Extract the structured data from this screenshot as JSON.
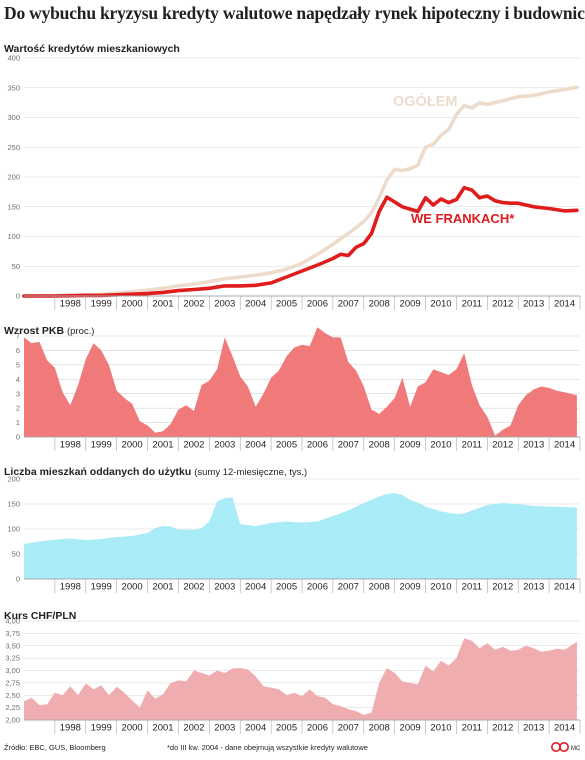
{
  "title": "Do wybuchu kryzysu kredyty walutowe napędzały rynek hipoteczny i budownictwo",
  "footer": {
    "source": "Źródło: EBC, GUS, Bloomberg",
    "note": "*do III kw. 2004 - dane obejmują wszystkie kredyty walutowe",
    "credit": "MC"
  },
  "colors": {
    "ogolem": "#eddccb",
    "frankach": "#e01c1c",
    "pkb": "#f07a79",
    "mieszkania": "#a9ecf7",
    "chf": "#f0adaf",
    "grid": "#d5d5d5",
    "axis": "#a7a9ac"
  },
  "years": [
    "1998",
    "1999",
    "2000",
    "2001",
    "2002",
    "2003",
    "2004",
    "2005",
    "2006",
    "2007",
    "2008",
    "2009",
    "2010",
    "2011",
    "2012",
    "2013",
    "2014"
  ],
  "chart_data": [
    {
      "type": "line",
      "title": "Wartość kredytów mieszkaniowych",
      "ylim": [
        0,
        400
      ],
      "yticks": [
        0,
        50,
        100,
        150,
        200,
        250,
        300,
        350,
        400
      ],
      "x_range": [
        1997,
        2015
      ],
      "series": [
        {
          "name": "OGÓŁEM",
          "points": [
            [
              1997.0,
              0
            ],
            [
              1998.0,
              1
            ],
            [
              1999.0,
              2
            ],
            [
              1999.5,
              3
            ],
            [
              2000.0,
              5
            ],
            [
              2000.5,
              7
            ],
            [
              2001.0,
              10
            ],
            [
              2001.5,
              13
            ],
            [
              2002.0,
              17
            ],
            [
              2002.5,
              20
            ],
            [
              2003.0,
              24
            ],
            [
              2003.5,
              29
            ],
            [
              2004.0,
              32
            ],
            [
              2004.5,
              35
            ],
            [
              2005.0,
              39
            ],
            [
              2005.5,
              45
            ],
            [
              2006.0,
              55
            ],
            [
              2006.5,
              70
            ],
            [
              2007.0,
              87
            ],
            [
              2007.5,
              105
            ],
            [
              2008.0,
              125
            ],
            [
              2008.25,
              140
            ],
            [
              2008.5,
              165
            ],
            [
              2008.75,
              195
            ],
            [
              2009.0,
              213
            ],
            [
              2009.25,
              211
            ],
            [
              2009.5,
              214
            ],
            [
              2009.75,
              220
            ],
            [
              2010.0,
              250
            ],
            [
              2010.25,
              255
            ],
            [
              2010.5,
              270
            ],
            [
              2010.75,
              280
            ],
            [
              2011.0,
              305
            ],
            [
              2011.25,
              320
            ],
            [
              2011.5,
              316
            ],
            [
              2011.75,
              325
            ],
            [
              2012.0,
              322
            ],
            [
              2012.5,
              328
            ],
            [
              2013.0,
              335
            ],
            [
              2013.5,
              337
            ],
            [
              2014.0,
              343
            ],
            [
              2014.5,
              347
            ],
            [
              2014.9,
              351
            ]
          ]
        },
        {
          "name": "WE FRANKACH*",
          "points": [
            [
              1997.0,
              0
            ],
            [
              1998.0,
              0
            ],
            [
              1999.0,
              1
            ],
            [
              1999.5,
              1
            ],
            [
              2000.0,
              2
            ],
            [
              2000.5,
              3
            ],
            [
              2001.0,
              4
            ],
            [
              2001.5,
              6
            ],
            [
              2002.0,
              9
            ],
            [
              2002.5,
              11
            ],
            [
              2003.0,
              13
            ],
            [
              2003.5,
              17
            ],
            [
              2004.0,
              17
            ],
            [
              2004.5,
              18
            ],
            [
              2005.0,
              22
            ],
            [
              2005.5,
              32
            ],
            [
              2006.0,
              42
            ],
            [
              2006.5,
              52
            ],
            [
              2007.0,
              63
            ],
            [
              2007.25,
              70
            ],
            [
              2007.5,
              68
            ],
            [
              2007.75,
              82
            ],
            [
              2008.0,
              88
            ],
            [
              2008.25,
              105
            ],
            [
              2008.5,
              142
            ],
            [
              2008.75,
              166
            ],
            [
              2009.0,
              158
            ],
            [
              2009.25,
              150
            ],
            [
              2009.5,
              146
            ],
            [
              2009.75,
              142
            ],
            [
              2010.0,
              165
            ],
            [
              2010.25,
              153
            ],
            [
              2010.5,
              163
            ],
            [
              2010.75,
              157
            ],
            [
              2011.0,
              162
            ],
            [
              2011.25,
              182
            ],
            [
              2011.5,
              178
            ],
            [
              2011.75,
              165
            ],
            [
              2012.0,
              168
            ],
            [
              2012.25,
              160
            ],
            [
              2012.5,
              157
            ],
            [
              2012.75,
              156
            ],
            [
              2013.0,
              156
            ],
            [
              2013.5,
              150
            ],
            [
              2014.0,
              147
            ],
            [
              2014.5,
              143
            ],
            [
              2014.9,
              144
            ]
          ]
        }
      ]
    },
    {
      "type": "area",
      "title": "Wzrost PKB",
      "unit": "(proc.)",
      "ylim": [
        0,
        7
      ],
      "yticks": [
        0,
        1,
        2,
        3,
        4,
        5,
        6,
        7
      ],
      "x_range": [
        1997,
        2015
      ],
      "points": [
        [
          1997.0,
          6.9
        ],
        [
          1997.25,
          6.5
        ],
        [
          1997.5,
          6.6
        ],
        [
          1997.75,
          5.3
        ],
        [
          1998.0,
          4.8
        ],
        [
          1998.25,
          3.1
        ],
        [
          1998.5,
          2.2
        ],
        [
          1998.75,
          3.6
        ],
        [
          1999.0,
          5.4
        ],
        [
          1999.25,
          6.5
        ],
        [
          1999.5,
          6.0
        ],
        [
          1999.75,
          5.0
        ],
        [
          2000.0,
          3.2
        ],
        [
          2000.25,
          2.7
        ],
        [
          2000.5,
          2.3
        ],
        [
          2000.75,
          1.1
        ],
        [
          2001.0,
          0.8
        ],
        [
          2001.25,
          0.3
        ],
        [
          2001.5,
          0.4
        ],
        [
          2001.75,
          0.9
        ],
        [
          2002.0,
          1.9
        ],
        [
          2002.25,
          2.2
        ],
        [
          2002.5,
          1.8
        ],
        [
          2002.75,
          3.6
        ],
        [
          2003.0,
          3.9
        ],
        [
          2003.25,
          4.7
        ],
        [
          2003.5,
          6.9
        ],
        [
          2003.75,
          5.6
        ],
        [
          2004.0,
          4.2
        ],
        [
          2004.25,
          3.5
        ],
        [
          2004.5,
          2.1
        ],
        [
          2004.75,
          3.0
        ],
        [
          2005.0,
          4.1
        ],
        [
          2005.25,
          4.6
        ],
        [
          2005.5,
          5.6
        ],
        [
          2005.75,
          6.2
        ],
        [
          2006.0,
          6.4
        ],
        [
          2006.25,
          6.3
        ],
        [
          2006.5,
          7.6
        ],
        [
          2006.75,
          7.2
        ],
        [
          2007.0,
          6.9
        ],
        [
          2007.25,
          6.9
        ],
        [
          2007.5,
          5.2
        ],
        [
          2007.75,
          4.6
        ],
        [
          2008.0,
          3.5
        ],
        [
          2008.25,
          1.9
        ],
        [
          2008.5,
          1.6
        ],
        [
          2008.75,
          2.1
        ],
        [
          2009.0,
          2.7
        ],
        [
          2009.25,
          4.1
        ],
        [
          2009.5,
          2.1
        ],
        [
          2009.75,
          3.5
        ],
        [
          2010.0,
          3.8
        ],
        [
          2010.25,
          4.7
        ],
        [
          2010.5,
          4.5
        ],
        [
          2010.75,
          4.3
        ],
        [
          2011.0,
          4.7
        ],
        [
          2011.25,
          5.8
        ],
        [
          2011.5,
          3.6
        ],
        [
          2011.75,
          2.2
        ],
        [
          2012.0,
          1.4
        ],
        [
          2012.25,
          0.1
        ],
        [
          2012.5,
          0.5
        ],
        [
          2012.75,
          0.8
        ],
        [
          2013.0,
          2.2
        ],
        [
          2013.25,
          2.9
        ],
        [
          2013.5,
          3.3
        ],
        [
          2013.75,
          3.5
        ],
        [
          2014.0,
          3.4
        ],
        [
          2014.25,
          3.2
        ],
        [
          2014.5,
          3.1
        ],
        [
          2014.9,
          2.9
        ]
      ]
    },
    {
      "type": "area",
      "title": "Liczba mieszkań oddanych do użytku",
      "unit": "(sumy 12-miesięczne, tys.)",
      "ylim": [
        0,
        200
      ],
      "yticks": [
        0,
        50,
        100,
        150,
        200
      ],
      "x_range": [
        1997,
        2015
      ],
      "points": [
        [
          1997.0,
          70
        ],
        [
          1997.5,
          75
        ],
        [
          1998.0,
          79
        ],
        [
          1998.5,
          81
        ],
        [
          1999.0,
          78
        ],
        [
          1999.5,
          80
        ],
        [
          2000.0,
          84
        ],
        [
          2000.5,
          86
        ],
        [
          2001.0,
          92
        ],
        [
          2001.25,
          102
        ],
        [
          2001.5,
          106
        ],
        [
          2001.75,
          105
        ],
        [
          2002.0,
          99
        ],
        [
          2002.5,
          98
        ],
        [
          2002.75,
          102
        ],
        [
          2003.0,
          115
        ],
        [
          2003.25,
          155
        ],
        [
          2003.5,
          162
        ],
        [
          2003.75,
          163
        ],
        [
          2004.0,
          110
        ],
        [
          2004.5,
          106
        ],
        [
          2005.0,
          112
        ],
        [
          2005.5,
          115
        ],
        [
          2006.0,
          113
        ],
        [
          2006.5,
          115
        ],
        [
          2007.0,
          126
        ],
        [
          2007.5,
          137
        ],
        [
          2008.0,
          152
        ],
        [
          2008.5,
          165
        ],
        [
          2008.75,
          170
        ],
        [
          2009.0,
          172
        ],
        [
          2009.25,
          168
        ],
        [
          2009.5,
          158
        ],
        [
          2009.75,
          153
        ],
        [
          2010.0,
          145
        ],
        [
          2010.5,
          135
        ],
        [
          2011.0,
          130
        ],
        [
          2011.25,
          131
        ],
        [
          2011.5,
          137
        ],
        [
          2012.0,
          148
        ],
        [
          2012.5,
          152
        ],
        [
          2013.0,
          150
        ],
        [
          2013.5,
          146
        ],
        [
          2014.0,
          145
        ],
        [
          2014.5,
          144
        ],
        [
          2014.9,
          143
        ]
      ]
    },
    {
      "type": "area",
      "title": "Kurs CHF/PLN",
      "ylim": [
        2.0,
        4.0
      ],
      "yticks": [
        2.0,
        2.25,
        2.5,
        2.75,
        3.0,
        3.25,
        3.5,
        3.75,
        4.0
      ],
      "ytick_labels": [
        "2,00",
        "2,25",
        "2,50",
        "2,75",
        "3,00",
        "3,25",
        "3,50",
        "3,75",
        "4,00"
      ],
      "x_range": [
        1997,
        2015
      ],
      "points": [
        [
          1997.0,
          2.38
        ],
        [
          1997.25,
          2.45
        ],
        [
          1997.5,
          2.3
        ],
        [
          1997.75,
          2.32
        ],
        [
          1998.0,
          2.55
        ],
        [
          1998.25,
          2.5
        ],
        [
          1998.5,
          2.68
        ],
        [
          1998.75,
          2.5
        ],
        [
          1999.0,
          2.74
        ],
        [
          1999.25,
          2.62
        ],
        [
          1999.5,
          2.7
        ],
        [
          1999.75,
          2.5
        ],
        [
          2000.0,
          2.67
        ],
        [
          2000.25,
          2.55
        ],
        [
          2000.5,
          2.4
        ],
        [
          2000.75,
          2.25
        ],
        [
          2001.0,
          2.6
        ],
        [
          2001.25,
          2.43
        ],
        [
          2001.5,
          2.52
        ],
        [
          2001.75,
          2.75
        ],
        [
          2002.0,
          2.8
        ],
        [
          2002.25,
          2.78
        ],
        [
          2002.5,
          3.0
        ],
        [
          2002.75,
          2.95
        ],
        [
          2003.0,
          2.9
        ],
        [
          2003.25,
          3.0
        ],
        [
          2003.5,
          2.95
        ],
        [
          2003.75,
          3.04
        ],
        [
          2004.0,
          3.05
        ],
        [
          2004.25,
          3.02
        ],
        [
          2004.5,
          2.88
        ],
        [
          2004.75,
          2.68
        ],
        [
          2005.0,
          2.65
        ],
        [
          2005.25,
          2.62
        ],
        [
          2005.5,
          2.5
        ],
        [
          2005.75,
          2.55
        ],
        [
          2006.0,
          2.48
        ],
        [
          2006.25,
          2.62
        ],
        [
          2006.5,
          2.48
        ],
        [
          2006.75,
          2.45
        ],
        [
          2007.0,
          2.32
        ],
        [
          2007.25,
          2.28
        ],
        [
          2007.5,
          2.22
        ],
        [
          2007.75,
          2.18
        ],
        [
          2008.0,
          2.1
        ],
        [
          2008.25,
          2.15
        ],
        [
          2008.5,
          2.75
        ],
        [
          2008.75,
          3.05
        ],
        [
          2009.0,
          2.95
        ],
        [
          2009.25,
          2.78
        ],
        [
          2009.5,
          2.75
        ],
        [
          2009.75,
          2.72
        ],
        [
          2010.0,
          3.1
        ],
        [
          2010.25,
          2.98
        ],
        [
          2010.5,
          3.2
        ],
        [
          2010.75,
          3.1
        ],
        [
          2011.0,
          3.25
        ],
        [
          2011.25,
          3.65
        ],
        [
          2011.5,
          3.6
        ],
        [
          2011.75,
          3.45
        ],
        [
          2012.0,
          3.55
        ],
        [
          2012.25,
          3.42
        ],
        [
          2012.5,
          3.48
        ],
        [
          2012.75,
          3.4
        ],
        [
          2013.0,
          3.42
        ],
        [
          2013.25,
          3.5
        ],
        [
          2013.5,
          3.45
        ],
        [
          2013.75,
          3.38
        ],
        [
          2014.0,
          3.4
        ],
        [
          2014.25,
          3.44
        ],
        [
          2014.5,
          3.42
        ],
        [
          2014.9,
          3.58
        ]
      ]
    }
  ]
}
